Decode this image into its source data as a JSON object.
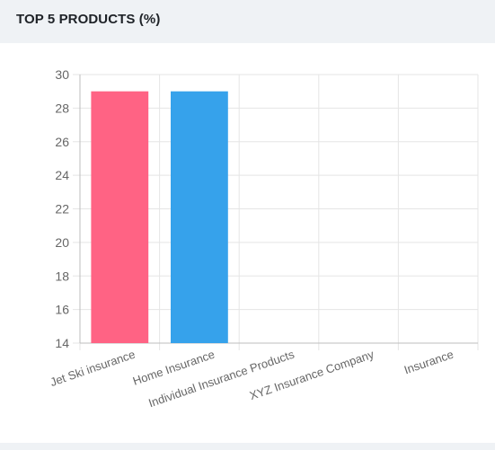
{
  "header": {
    "title": "TOP 5 PRODUCTS (%)"
  },
  "chart_data": {
    "type": "bar",
    "title": "",
    "xlabel": "",
    "ylabel": "",
    "categories": [
      "Jet Ski insurance",
      "Home Insurance",
      "Individual Insurance Products",
      "XYZ Insurance Company",
      "Insurance"
    ],
    "values": [
      29,
      29,
      14,
      14,
      14
    ],
    "ylim": [
      14,
      30
    ],
    "yticks": [
      14,
      16,
      18,
      20,
      22,
      24,
      26,
      28,
      30
    ],
    "colors": [
      "#ff6384",
      "#36a2eb",
      "#cc65fe",
      "#ffce56",
      "#4bc0c0"
    ],
    "grid": true,
    "legend": "none"
  }
}
